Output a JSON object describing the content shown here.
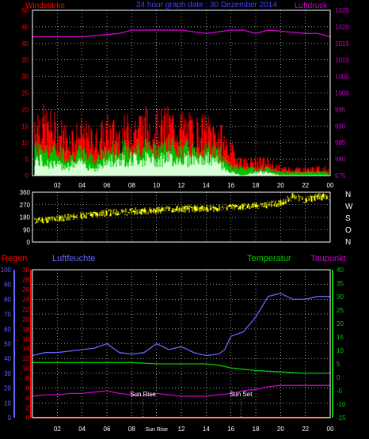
{
  "header": {
    "left_title": "Windstärke",
    "center_title": "24 hour graph date : 30 Dezember 2014",
    "right_title": "Luftdruck"
  },
  "labels": {
    "regen": "Regen",
    "luftfeuchte": "Luftfeuchte",
    "temperatur": "Temperatur",
    "taupunkt": "Taupunkt",
    "sun_rise": "Sun Rise",
    "sun_set": "Sun Set"
  },
  "colors": {
    "background": "#000000",
    "grid": "#ffffff",
    "wind_gust": "#ff0000",
    "wind_avg": "#00c000",
    "wind_min": "#d8ffd8",
    "pressure": "#cc00cc",
    "direction": "#ffff00",
    "humidity": "#6666ff",
    "temperature": "#00cc00",
    "dewpoint": "#cc00cc",
    "rain": "#ff0000",
    "red_axis": "#ff0000",
    "blue_axis": "#6666ff",
    "green_axis": "#00cc00",
    "magenta_axis": "#cc00cc",
    "white_text": "#ffffff"
  },
  "chart_data": [
    {
      "type": "bar",
      "title": "Windstärke",
      "x_ticks": [
        "02",
        "04",
        "06",
        "08",
        "10",
        "12",
        "14",
        "16",
        "18",
        "20",
        "22",
        "00"
      ],
      "x_range_hours": [
        0,
        24
      ],
      "y_left_ticks": [
        0,
        5,
        10,
        15,
        20,
        25,
        30,
        35,
        40,
        45,
        50
      ],
      "y_left_range": [
        0,
        50
      ],
      "y_right_ticks": [
        975,
        980,
        985,
        990,
        995,
        1000,
        1005,
        1010,
        1015,
        1020,
        1025
      ],
      "y_right_range": [
        975,
        1025
      ],
      "series": [
        {
          "name": "Windstärke",
          "hours": [
            0,
            1,
            2,
            3,
            4,
            5,
            6,
            7,
            8,
            9,
            10,
            11,
            12,
            13,
            14,
            15,
            16,
            17,
            18,
            19,
            20,
            21,
            22,
            23,
            24
          ],
          "gust": [
            17,
            15,
            13,
            11,
            12,
            10,
            13,
            12,
            14,
            15,
            14,
            15,
            14,
            13,
            13,
            12,
            7,
            4,
            4,
            4,
            2,
            2,
            2,
            2,
            2
          ],
          "avg": [
            9,
            8,
            7,
            6,
            7,
            5,
            7,
            8,
            8,
            9,
            8,
            9,
            8,
            8,
            8,
            7,
            3,
            2,
            2,
            2,
            1,
            1,
            1,
            1,
            1
          ],
          "min": [
            5,
            4,
            3,
            3,
            4,
            2,
            4,
            5,
            5,
            5,
            5,
            5,
            5,
            5,
            5,
            4,
            1,
            0,
            1,
            1,
            0,
            0,
            0,
            0,
            0
          ]
        },
        {
          "name": "Luftdruck",
          "axis": "right",
          "hours": [
            0,
            4,
            7,
            8,
            9,
            12,
            14,
            16,
            17,
            18,
            19,
            22,
            23,
            24
          ],
          "values": [
            1017,
            1017,
            1018,
            1019,
            1019,
            1019,
            1018,
            1019,
            1019,
            1018,
            1019,
            1018,
            1018,
            1017
          ]
        }
      ]
    },
    {
      "type": "line",
      "x_ticks": [
        "02",
        "04",
        "06",
        "08",
        "10",
        "12",
        "14",
        "16",
        "18",
        "20",
        "22",
        "00"
      ],
      "x_range_hours": [
        0,
        24
      ],
      "y_ticks": [
        0,
        90,
        180,
        270,
        360
      ],
      "y_range": [
        0,
        360
      ],
      "right_labels": [
        "N",
        "W",
        "S",
        "O",
        "N"
      ],
      "series": [
        {
          "name": "Windrichtung",
          "hours": [
            0,
            2,
            4,
            6,
            8,
            10,
            12,
            14,
            16,
            18,
            20,
            21,
            22,
            23,
            24
          ],
          "values": [
            150,
            170,
            190,
            210,
            220,
            230,
            240,
            240,
            250,
            260,
            280,
            330,
            300,
            330,
            320
          ]
        }
      ]
    },
    {
      "type": "line",
      "x_ticks": [
        "02",
        "04",
        "06",
        "08",
        "Sun Rise",
        "12",
        "14",
        "16",
        "18",
        "20",
        "22",
        "00"
      ],
      "x_range_hours": [
        0,
        24
      ],
      "y_humidity_ticks": [
        0,
        10,
        20,
        30,
        40,
        50,
        60,
        70,
        80,
        90,
        100
      ],
      "y_humidity_range": [
        0,
        100
      ],
      "y_rain_ticks": [
        0,
        2,
        4,
        6,
        8,
        10,
        12,
        14,
        16,
        18,
        20,
        22,
        24,
        26,
        28,
        30
      ],
      "y_rain_range": [
        0,
        30
      ],
      "y_temp_ticks": [
        -15,
        -10,
        -5,
        0,
        5,
        10,
        15,
        20,
        25,
        30,
        35,
        40
      ],
      "y_temp_range": [
        -15,
        40
      ],
      "annotations": [
        {
          "label": "Sun Rise",
          "hour": 8.9
        },
        {
          "label": "Sun Set",
          "hour": 16.8
        }
      ],
      "series": [
        {
          "name": "Luftfeuchte",
          "axis": "humidity",
          "hours": [
            0,
            1,
            2,
            3,
            4,
            5,
            6,
            7,
            8,
            9,
            10,
            11,
            12,
            13,
            14,
            15,
            15.5,
            16,
            17,
            18,
            19,
            20,
            21,
            22,
            23,
            24
          ],
          "values": [
            42,
            44,
            44,
            45,
            46,
            47,
            50,
            44,
            43,
            44,
            50,
            46,
            48,
            44,
            42,
            43,
            46,
            55,
            58,
            68,
            82,
            84,
            80,
            80,
            82,
            82
          ]
        },
        {
          "name": "Temperatur",
          "axis": "temperature",
          "hours": [
            0,
            2,
            4,
            6,
            8,
            10,
            12,
            14,
            15,
            16,
            17,
            18,
            20,
            22,
            24
          ],
          "values": [
            5.5,
            5.5,
            5.5,
            5.5,
            5.5,
            5,
            5,
            5,
            4.5,
            3.5,
            3,
            2.5,
            2,
            1.5,
            1.5
          ]
        },
        {
          "name": "Taupunkt",
          "axis": "temperature",
          "hours": [
            0,
            1,
            2,
            3,
            4,
            5,
            6,
            7,
            8,
            9,
            10,
            11,
            12,
            13,
            14,
            15,
            16,
            17,
            18,
            19,
            20,
            21,
            22,
            23,
            24
          ],
          "values": [
            -7,
            -6.5,
            -6.5,
            -6,
            -6,
            -5.5,
            -5,
            -6,
            -6.5,
            -7,
            -6,
            -6.5,
            -7,
            -7,
            -7,
            -6.5,
            -6,
            -5,
            -4.5,
            -3.5,
            -3,
            -3,
            -3,
            -3,
            -3
          ]
        },
        {
          "name": "Regen",
          "axis": "rain",
          "hours": [
            0,
            24
          ],
          "values": [
            0,
            0
          ]
        }
      ]
    }
  ]
}
